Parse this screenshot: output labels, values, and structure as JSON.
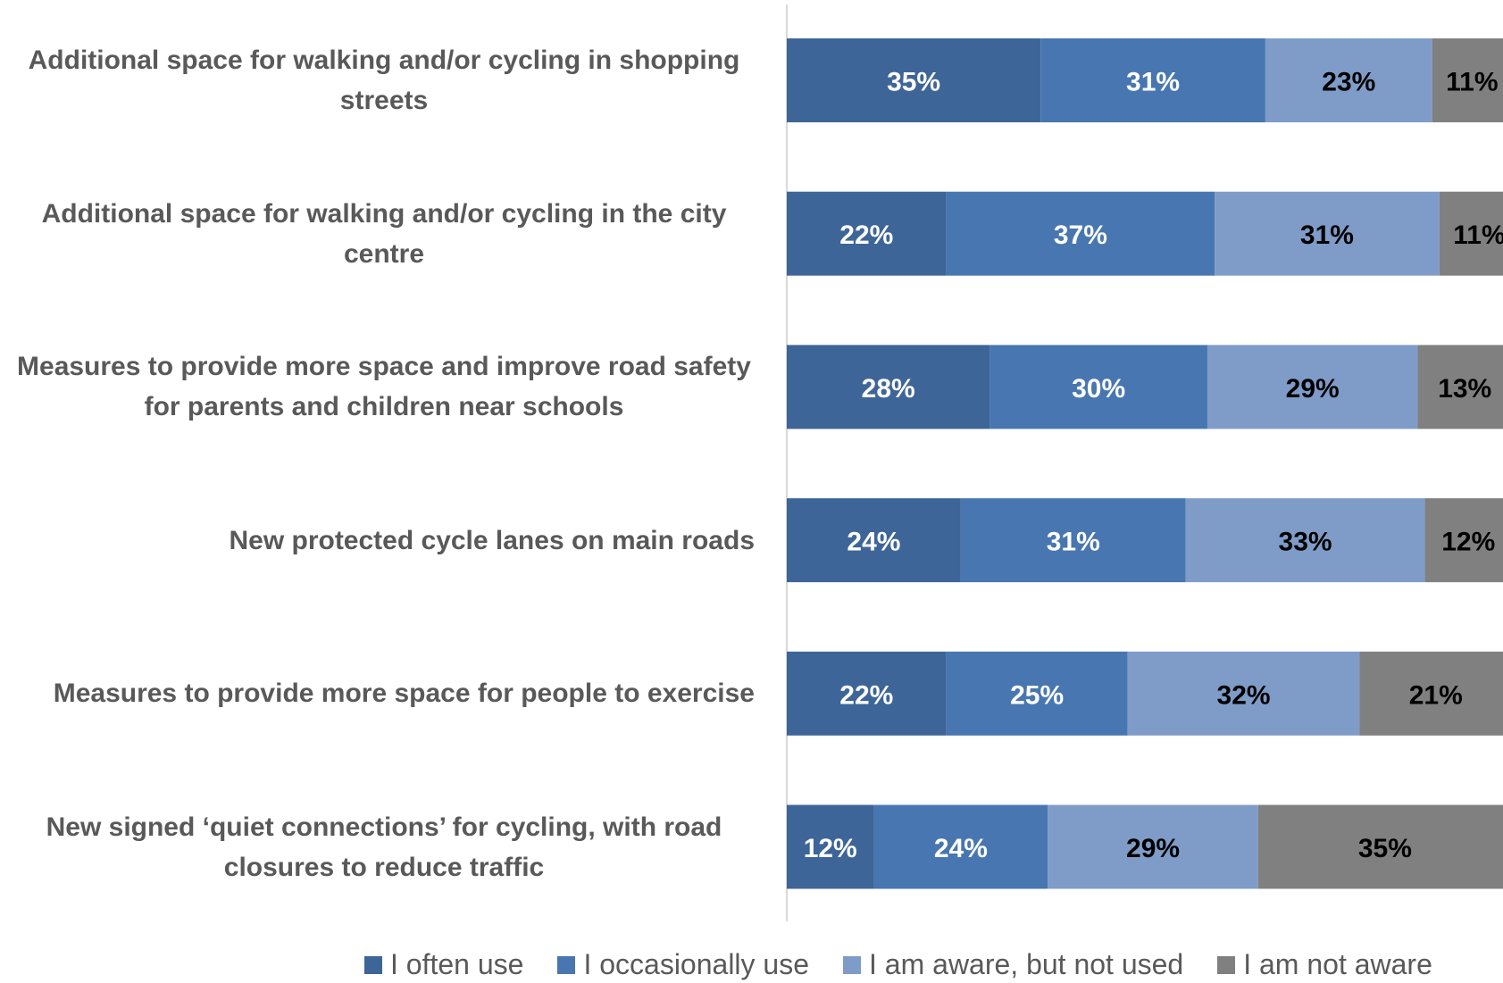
{
  "chart_data": {
    "type": "stacked-bar",
    "orientation": "horizontal",
    "categories": [
      "Additional space for walking and/or cycling in shopping streets",
      "Additional space for walking and/or cycling in the city centre",
      "Measures to provide more space and improve road safety for parents and children near schools",
      "New protected cycle lanes on main roads",
      "Measures to provide more space for people to exercise",
      "New signed ‘quiet connections’ for cycling, with road closures to reduce traffic"
    ],
    "series": [
      {
        "name": "I often use",
        "color": "#3e6597",
        "values": [
          35,
          22,
          28,
          24,
          22,
          12
        ],
        "value_labels": [
          "35%",
          "22%",
          "28%",
          "24%",
          "22%",
          "12%"
        ]
      },
      {
        "name": "I occasionally use",
        "color": "#4876b0",
        "values": [
          31,
          37,
          30,
          31,
          25,
          24
        ],
        "value_labels": [
          "31%",
          "37%",
          "30%",
          "31%",
          "25%",
          "24%"
        ]
      },
      {
        "name": "I am aware, but not used",
        "color": "#7f9cc8",
        "values": [
          23,
          31,
          29,
          33,
          32,
          29
        ],
        "value_labels": [
          "23%",
          "31%",
          "29%",
          "33%",
          "32%",
          "29%"
        ]
      },
      {
        "name": "I am not aware",
        "color": "#808080",
        "values": [
          11,
          11,
          13,
          12,
          21,
          35
        ],
        "value_labels": [
          "11%",
          "11%",
          "13%",
          "12%",
          "21%",
          "35%"
        ]
      }
    ],
    "xlim": [
      0,
      100
    ],
    "legend": "bottom"
  }
}
